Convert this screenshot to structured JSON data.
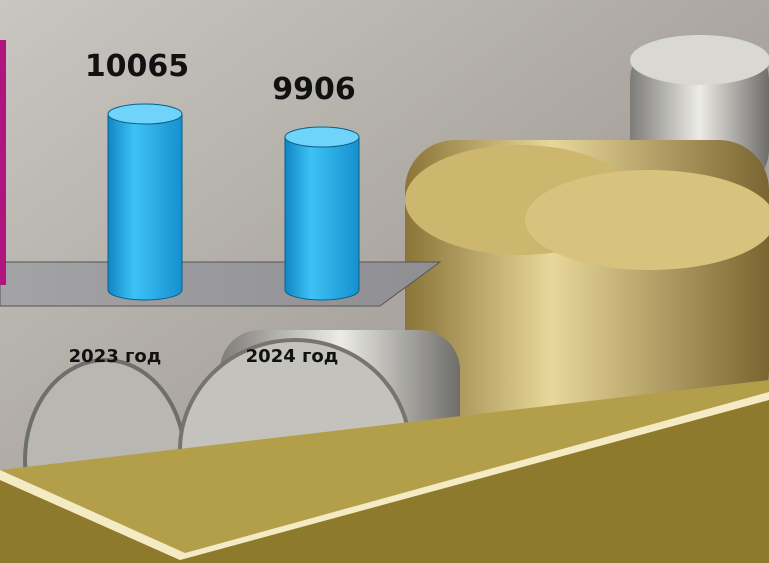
{
  "chart_data": {
    "type": "bar3d",
    "categories": [
      "2023 год",
      "2024 год"
    ],
    "values": [
      10065,
      9906
    ],
    "color": "#1ea7e6",
    "ylim": [
      8850,
      10300
    ]
  }
}
